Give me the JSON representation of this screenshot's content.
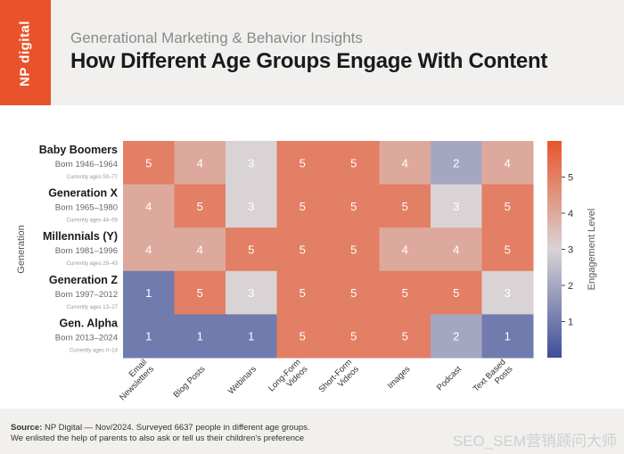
{
  "brand": {
    "logo_text": "NP digital"
  },
  "header": {
    "subtitle": "Generational Marketing & Behavior Insights",
    "title": "How Different Age Groups Engage With Content"
  },
  "chart_data": {
    "type": "heatmap",
    "ylabel": "Generation",
    "colorbar_label": "Engagement Level",
    "colorbar_ticks": [
      1,
      2,
      3,
      4,
      5
    ],
    "value_range": [
      0,
      6
    ],
    "colors": {
      "low": "#3d4f99",
      "mid": "#d9d3d6",
      "high": "#e8552b"
    },
    "columns": [
      "Email Newsletters",
      "Blog Posts",
      "Webinars",
      "Long-Form Videos",
      "Short-Form Videos",
      "Images",
      "Podcast",
      "Text Based Posts"
    ],
    "rows": [
      {
        "name": "Baby Boomers",
        "born": "Born 1946–1964",
        "ages": "Currently ages 59–77",
        "values": [
          5,
          4,
          3,
          5,
          5,
          4,
          2,
          4
        ]
      },
      {
        "name": "Generation X",
        "born": "Born 1965–1980",
        "ages": "Currently ages 44–59",
        "values": [
          4,
          5,
          3,
          5,
          5,
          5,
          3,
          5
        ]
      },
      {
        "name": "Millennials (Y)",
        "born": "Born 1981–1996",
        "ages": "Currently ages 28–43",
        "values": [
          4,
          4,
          5,
          5,
          5,
          4,
          4,
          5
        ]
      },
      {
        "name": "Generation Z",
        "born": "Born 1997–2012",
        "ages": "Currently ages 13–27",
        "values": [
          1,
          5,
          3,
          5,
          5,
          5,
          5,
          3
        ]
      },
      {
        "name": "Gen. Alpha",
        "born": "Born 2013–2024",
        "ages": "Currently ages 0–14",
        "values": [
          1,
          1,
          1,
          5,
          5,
          5,
          2,
          1
        ]
      }
    ]
  },
  "footer": {
    "source_label": "Source:",
    "source_text": "NP Digital — Nov/2024. Surveyed 6637 people in different age groups.",
    "note": "We enlisted the help of parents to also ask or tell us their children's preference"
  },
  "watermark": "SEO_SEM营销顾问大师"
}
